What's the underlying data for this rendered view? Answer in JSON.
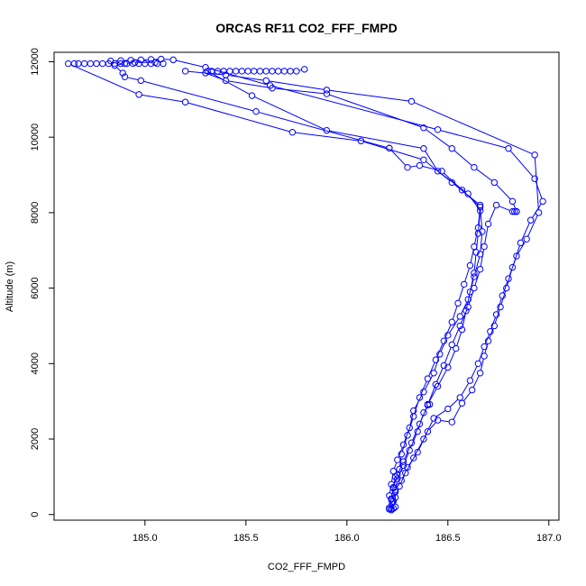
{
  "chart_data": {
    "type": "line",
    "title": "ORCAS RF11 CO2_FFF_FMPD",
    "xlabel": "CO2_FFF_FMPD",
    "ylabel": "Altitude (m)",
    "xlim": [
      184.55,
      187.05
    ],
    "ylim": [
      -150,
      12250
    ],
    "xticks": [
      185.0,
      185.5,
      186.0,
      186.5,
      187.0
    ],
    "xtick_labels": [
      "185.0",
      "185.5",
      "186.0",
      "186.5",
      "187.0"
    ],
    "yticks": [
      0,
      2000,
      4000,
      6000,
      8000,
      10000,
      12000
    ],
    "ytick_labels": [
      "0",
      "2000",
      "4000",
      "6000",
      "8000",
      "10000",
      "12000"
    ],
    "grid": false,
    "series_color": "#0000ff",
    "markers": "open-circle",
    "series": [
      {
        "values": [
          [
            186.22,
            150
          ],
          [
            186.22,
            400
          ],
          [
            186.23,
            700
          ],
          [
            186.24,
            1000
          ],
          [
            186.26,
            1200
          ],
          [
            186.27,
            1600
          ],
          [
            186.3,
            2100
          ],
          [
            186.33,
            2600
          ],
          [
            186.36,
            3100
          ],
          [
            186.4,
            3600
          ],
          [
            186.44,
            4100
          ],
          [
            186.48,
            4600
          ],
          [
            186.52,
            5100
          ],
          [
            186.55,
            5600
          ],
          [
            186.58,
            6100
          ],
          [
            186.61,
            6600
          ],
          [
            186.63,
            7100
          ],
          [
            186.65,
            7600
          ],
          [
            186.66,
            8200
          ],
          [
            186.52,
            8800
          ],
          [
            186.38,
            9400
          ],
          [
            186.07,
            9900
          ],
          [
            185.73,
            10130
          ],
          [
            185.2,
            10930
          ],
          [
            184.97,
            11130
          ],
          [
            184.62,
            11950
          ],
          [
            184.65,
            11950
          ],
          [
            184.67,
            11950
          ],
          [
            184.7,
            11950
          ],
          [
            184.73,
            11950
          ],
          [
            184.76,
            11950
          ],
          [
            184.79,
            11950
          ],
          [
            184.82,
            11950
          ],
          [
            184.85,
            11950
          ],
          [
            184.88,
            11950
          ],
          [
            184.91,
            11950
          ],
          [
            184.94,
            11950
          ],
          [
            184.97,
            11950
          ],
          [
            185.0,
            11950
          ],
          [
            185.03,
            11950
          ],
          [
            185.06,
            11950
          ],
          [
            185.09,
            11950
          ]
        ]
      },
      {
        "values": [
          [
            186.21,
            180
          ],
          [
            186.21,
            500
          ],
          [
            186.22,
            800
          ],
          [
            186.23,
            1150
          ],
          [
            186.25,
            1450
          ],
          [
            186.28,
            1850
          ],
          [
            186.31,
            2300
          ],
          [
            186.33,
            2750
          ],
          [
            186.38,
            3250
          ],
          [
            186.43,
            3750
          ],
          [
            186.46,
            4250
          ],
          [
            186.5,
            4750
          ],
          [
            186.56,
            5250
          ],
          [
            186.6,
            5700
          ],
          [
            186.63,
            6300
          ],
          [
            186.66,
            6900
          ],
          [
            186.67,
            7500
          ],
          [
            186.66,
            8150
          ],
          [
            186.57,
            8600
          ],
          [
            186.47,
            9100
          ],
          [
            186.36,
            9250
          ],
          [
            186.3,
            9200
          ],
          [
            186.21,
            9710
          ],
          [
            186.21,
            9710
          ],
          [
            185.55,
            10680
          ],
          [
            184.98,
            11500
          ],
          [
            184.9,
            11600
          ],
          [
            184.89,
            11700
          ],
          [
            184.85,
            11900
          ],
          [
            184.9,
            11950
          ],
          [
            184.95,
            11980
          ],
          [
            185.05,
            11980
          ]
        ]
      },
      {
        "values": [
          [
            186.24,
            200
          ],
          [
            186.24,
            600
          ],
          [
            186.25,
            950
          ],
          [
            186.28,
            1300
          ],
          [
            186.31,
            1700
          ],
          [
            186.35,
            2200
          ],
          [
            186.38,
            2700
          ],
          [
            186.41,
            2920
          ],
          [
            186.4,
            2920
          ],
          [
            186.45,
            3400
          ],
          [
            186.5,
            3900
          ],
          [
            186.54,
            4400
          ],
          [
            186.57,
            4900
          ],
          [
            186.59,
            5400
          ],
          [
            186.61,
            5900
          ],
          [
            186.63,
            6400
          ],
          [
            186.64,
            6950
          ],
          [
            186.65,
            7450
          ],
          [
            186.66,
            8050
          ],
          [
            186.6,
            8500
          ],
          [
            186.45,
            9100
          ],
          [
            186.38,
            9700
          ],
          [
            185.9,
            10180
          ],
          [
            185.53,
            11100
          ],
          [
            185.31,
            11750
          ],
          [
            185.33,
            11750
          ],
          [
            185.36,
            11750
          ],
          [
            185.39,
            11750
          ],
          [
            185.42,
            11750
          ],
          [
            185.45,
            11750
          ],
          [
            185.48,
            11750
          ],
          [
            185.51,
            11750
          ],
          [
            185.54,
            11750
          ],
          [
            185.57,
            11750
          ],
          [
            185.6,
            11750
          ],
          [
            185.63,
            11750
          ],
          [
            185.66,
            11750
          ],
          [
            185.69,
            11750
          ],
          [
            185.72,
            11750
          ],
          [
            185.75,
            11750
          ],
          [
            185.79,
            11800
          ]
        ]
      },
      {
        "values": [
          [
            186.22,
            120
          ],
          [
            186.23,
            350
          ],
          [
            186.24,
            650
          ],
          [
            186.27,
            900
          ],
          [
            186.3,
            1250
          ],
          [
            186.35,
            1650
          ],
          [
            186.4,
            2200
          ],
          [
            186.45,
            2500
          ],
          [
            186.52,
            2450
          ],
          [
            186.57,
            2950
          ],
          [
            186.62,
            3300
          ],
          [
            186.66,
            3750
          ],
          [
            186.68,
            4200
          ],
          [
            186.7,
            4600
          ],
          [
            186.73,
            5000
          ],
          [
            186.76,
            5500
          ],
          [
            186.79,
            6000
          ],
          [
            186.82,
            6550
          ],
          [
            186.86,
            7200
          ],
          [
            186.91,
            7800
          ],
          [
            186.97,
            8300
          ],
          [
            186.93,
            8900
          ],
          [
            186.8,
            9700
          ],
          [
            186.45,
            10200
          ],
          [
            185.62,
            11370
          ],
          [
            185.3,
            11850
          ],
          [
            185.14,
            12050
          ],
          [
            185.08,
            12070
          ],
          [
            185.03,
            12060
          ],
          [
            184.98,
            12050
          ],
          [
            184.93,
            12040
          ],
          [
            184.88,
            12030
          ],
          [
            184.83,
            12020
          ]
        ]
      },
      {
        "values": [
          [
            186.23,
            160
          ],
          [
            186.24,
            450
          ],
          [
            186.26,
            750
          ],
          [
            186.29,
            1100
          ],
          [
            186.33,
            1500
          ],
          [
            186.38,
            2000
          ],
          [
            186.43,
            2550
          ],
          [
            186.5,
            2800
          ],
          [
            186.56,
            3100
          ],
          [
            186.61,
            3550
          ],
          [
            186.65,
            4000
          ],
          [
            186.68,
            4450
          ],
          [
            186.71,
            4850
          ],
          [
            186.74,
            5300
          ],
          [
            186.77,
            5800
          ],
          [
            186.8,
            6250
          ],
          [
            186.84,
            6850
          ],
          [
            186.89,
            7300
          ],
          [
            186.95,
            8000
          ],
          [
            186.93,
            9530
          ],
          [
            186.32,
            10950
          ],
          [
            185.9,
            11250
          ],
          [
            185.6,
            11500
          ],
          [
            185.4,
            11650
          ],
          [
            185.2,
            11750
          ]
        ]
      },
      {
        "values": [
          [
            186.21,
            140
          ],
          [
            186.22,
            420
          ],
          [
            186.23,
            720
          ],
          [
            186.25,
            1050
          ],
          [
            186.28,
            1400
          ],
          [
            186.32,
            1900
          ],
          [
            186.36,
            2400
          ],
          [
            186.4,
            2900
          ],
          [
            186.44,
            3450
          ],
          [
            186.48,
            3950
          ],
          [
            186.52,
            4500
          ],
          [
            186.56,
            5000
          ],
          [
            186.6,
            5500
          ],
          [
            186.63,
            6000
          ],
          [
            186.66,
            6500
          ],
          [
            186.68,
            7100
          ],
          [
            186.7,
            7700
          ],
          [
            186.74,
            8200
          ],
          [
            186.82,
            8030
          ],
          [
            186.83,
            8030
          ],
          [
            186.84,
            8030
          ],
          [
            186.84,
            8030
          ],
          [
            186.82,
            8300
          ],
          [
            186.73,
            8800
          ],
          [
            186.63,
            9200
          ],
          [
            186.52,
            9700
          ],
          [
            186.38,
            10250
          ],
          [
            185.9,
            11150
          ],
          [
            185.63,
            11300
          ],
          [
            185.4,
            11500
          ],
          [
            185.3,
            11700
          ]
        ]
      }
    ]
  }
}
